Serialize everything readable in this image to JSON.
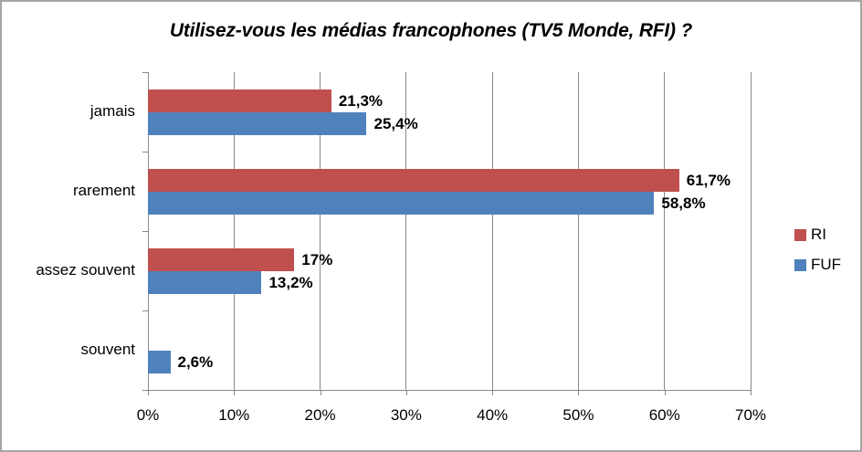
{
  "title": "Utilisez-vous les médias francophones (TV5 Monde, RFI) ?",
  "chart_data": {
    "type": "bar",
    "orientation": "horizontal",
    "title": "Utilisez-vous les médias francophones (TV5 Monde, RFI) ?",
    "categories": [
      "jamais",
      "rarement",
      "assez souvent",
      "souvent"
    ],
    "series": [
      {
        "name": "RI",
        "color": "#C0504D",
        "values": [
          21.3,
          61.7,
          17,
          0
        ],
        "labels": [
          "21,3%",
          "61,7%",
          "17%",
          ""
        ]
      },
      {
        "name": "FUF",
        "color": "#4F81BD",
        "values": [
          25.4,
          58.8,
          13.2,
          2.6
        ],
        "labels": [
          "25,4%",
          "58,8%",
          "13,2%",
          "2,6%"
        ]
      }
    ],
    "xlim": [
      0,
      70
    ],
    "x_tick_labels": [
      "0%",
      "10%",
      "20%",
      "30%",
      "40%",
      "50%",
      "60%",
      "70%"
    ],
    "grid": "vertical",
    "legend_position": "right"
  },
  "legend": {
    "items": [
      {
        "label": "RI",
        "color": "#C0504D"
      },
      {
        "label": "FUF",
        "color": "#4F81BD"
      }
    ]
  },
  "colors": {
    "grid": "#8a8a8a",
    "axis": "#8a8a8a",
    "frame_border": "#a6a6a6",
    "series_red": "#C0504D",
    "series_blue": "#4F81BD"
  }
}
